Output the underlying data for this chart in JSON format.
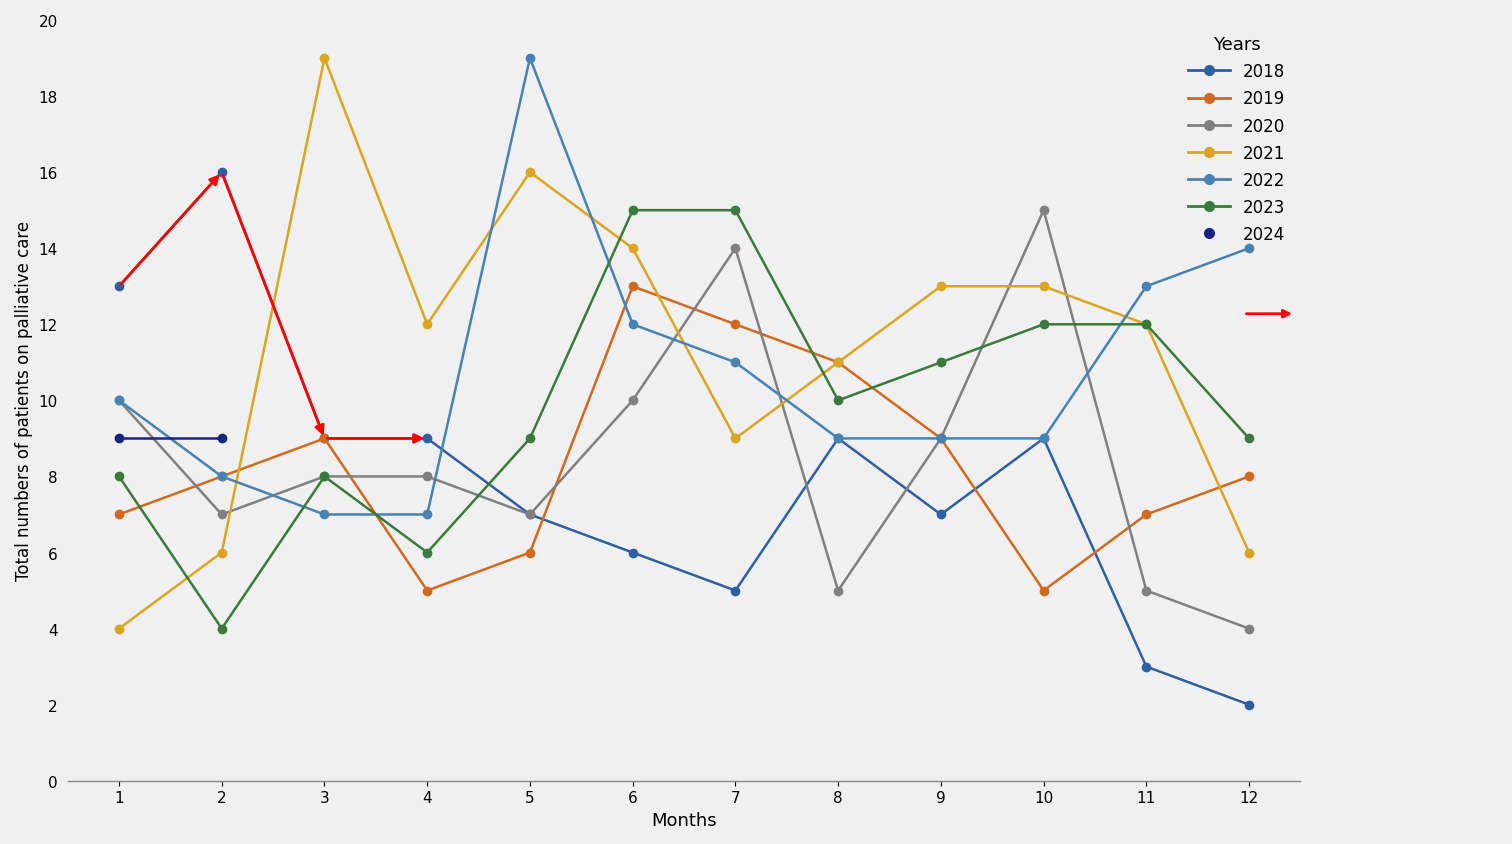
{
  "series": {
    "2018": {
      "months": [
        1,
        2,
        3,
        4,
        5,
        6,
        7,
        8,
        9,
        10,
        11,
        12
      ],
      "values": [
        13,
        16,
        9,
        9,
        7,
        6,
        5,
        9,
        7,
        9,
        3,
        2
      ],
      "color": "#2e5fa3",
      "marker": "o"
    },
    "2019": {
      "months": [
        1,
        2,
        3,
        4,
        5,
        6,
        7,
        8,
        9,
        10,
        11,
        12
      ],
      "values": [
        7,
        8,
        9,
        5,
        6,
        13,
        12,
        11,
        9,
        5,
        7,
        8
      ],
      "color": "#d2691e",
      "marker": "o"
    },
    "2020": {
      "months": [
        1,
        2,
        3,
        4,
        5,
        6,
        7,
        8,
        9,
        10,
        11,
        12
      ],
      "values": [
        10,
        7,
        8,
        8,
        7,
        10,
        14,
        5,
        9,
        15,
        5,
        4
      ],
      "color": "#808080",
      "marker": "o"
    },
    "2021": {
      "months": [
        1,
        2,
        3,
        4,
        5,
        6,
        7,
        8,
        9,
        10,
        11,
        12
      ],
      "values": [
        4,
        6,
        19,
        12,
        16,
        14,
        9,
        11,
        13,
        13,
        12,
        6
      ],
      "color": "#daa520",
      "marker": "o"
    },
    "2022": {
      "months": [
        1,
        2,
        3,
        4,
        5,
        6,
        7,
        8,
        9,
        10,
        11,
        12
      ],
      "values": [
        10,
        8,
        7,
        7,
        19,
        12,
        11,
        9,
        9,
        9,
        13,
        14
      ],
      "color": "#4682b4",
      "marker": "o"
    },
    "2023": {
      "months": [
        1,
        2,
        3,
        4,
        5,
        6,
        7,
        8,
        9,
        10,
        11,
        12
      ],
      "values": [
        8,
        4,
        8,
        6,
        9,
        15,
        15,
        10,
        11,
        12,
        12,
        9
      ],
      "color": "#3a7a3a",
      "marker": "o"
    },
    "2024": {
      "months": [
        1,
        2
      ],
      "values": [
        9,
        9
      ],
      "color": "#1a237e",
      "marker": "o"
    }
  },
  "xlabel": "Months",
  "ylabel": "Total numbers of patients on palliative care",
  "xlim": [
    0.5,
    12.5
  ],
  "ylim": [
    0,
    20
  ],
  "yticks": [
    0,
    2,
    4,
    6,
    8,
    10,
    12,
    14,
    16,
    18,
    20
  ],
  "xticks": [
    1,
    2,
    3,
    4,
    5,
    6,
    7,
    8,
    9,
    10,
    11,
    12
  ],
  "legend_title": "Years",
  "background_color": "#f0f0f0"
}
